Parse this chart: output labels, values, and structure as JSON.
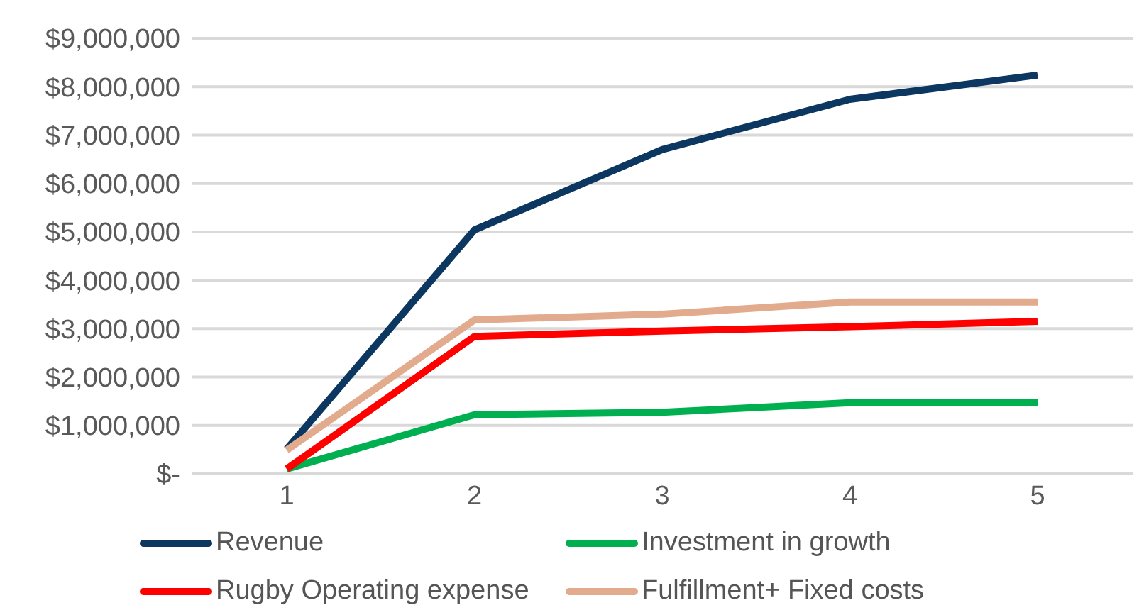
{
  "chart_data": {
    "type": "line",
    "categories": [
      "1",
      "2",
      "3",
      "4",
      "5"
    ],
    "series": [
      {
        "name": "Revenue",
        "color": "#0b3760",
        "values": [
          510000,
          5040000,
          6700000,
          7740000,
          8240000
        ]
      },
      {
        "name": "Investment in growth",
        "color": "#00b050",
        "values": [
          100000,
          1220000,
          1270000,
          1470000,
          1470000
        ]
      },
      {
        "name": "Rugby Operating expense",
        "color": "#ff0000",
        "values": [
          100000,
          2840000,
          2950000,
          3040000,
          3150000
        ]
      },
      {
        "name": "Fulfillment+ Fixed costs",
        "color": "#e3ab8e",
        "values": [
          490000,
          3180000,
          3300000,
          3550000,
          3550000
        ]
      }
    ],
    "ylim": [
      0,
      9000000
    ],
    "yticks": [
      {
        "value": 0,
        "label": "$-"
      },
      {
        "value": 1000000,
        "label": "$1,000,000"
      },
      {
        "value": 2000000,
        "label": "$2,000,000"
      },
      {
        "value": 3000000,
        "label": "$3,000,000"
      },
      {
        "value": 4000000,
        "label": "$4,000,000"
      },
      {
        "value": 5000000,
        "label": "$5,000,000"
      },
      {
        "value": 6000000,
        "label": "$6,000,000"
      },
      {
        "value": 7000000,
        "label": "$7,000,000"
      },
      {
        "value": 8000000,
        "label": "$8,000,000"
      },
      {
        "value": 9000000,
        "label": "$9,000,000"
      }
    ],
    "grid": "y",
    "legend": "bottom",
    "marker": "none",
    "line_style": "solid"
  }
}
